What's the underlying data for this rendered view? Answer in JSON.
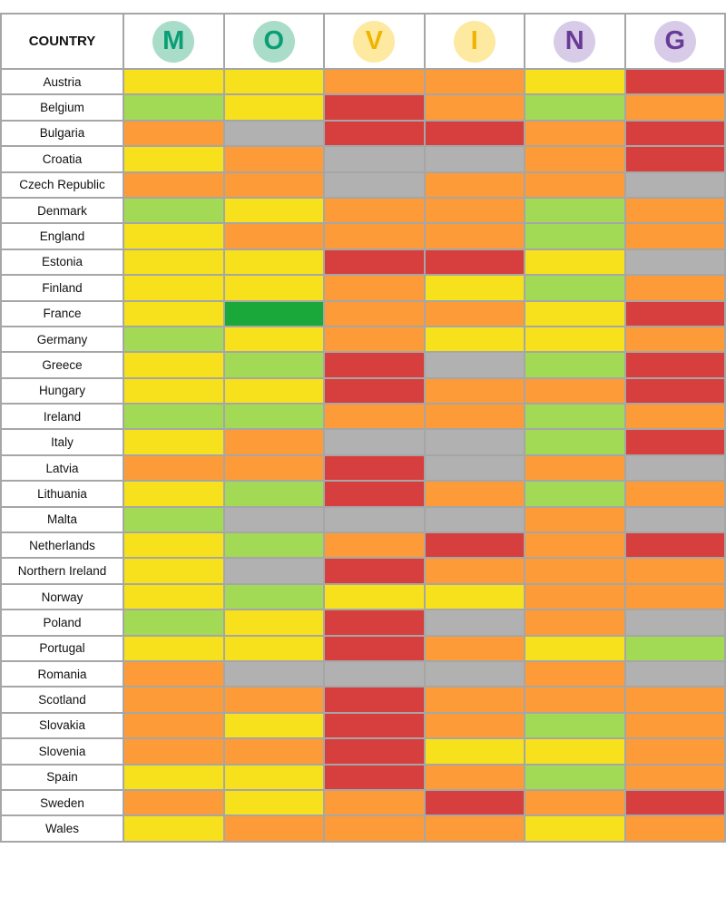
{
  "chart_data": {
    "type": "table",
    "header": {
      "country_label": "COUNTRY",
      "columns": [
        {
          "letter": "M",
          "circle_color": "#a9dcc9",
          "letter_color": "#0a9e74"
        },
        {
          "letter": "O",
          "circle_color": "#a9dcc9",
          "letter_color": "#0a9e74"
        },
        {
          "letter": "V",
          "circle_color": "#fde9a0",
          "letter_color": "#f0b400"
        },
        {
          "letter": "I",
          "circle_color": "#fde9a0",
          "letter_color": "#f0b400"
        },
        {
          "letter": "N",
          "circle_color": "#d7cbe8",
          "letter_color": "#6a3b96"
        },
        {
          "letter": "G",
          "circle_color": "#d7cbe8",
          "letter_color": "#6a3b96"
        }
      ]
    },
    "palette": {
      "Y": "#f6e11c",
      "O": "#fd9b38",
      "R": "#d73e3e",
      "L": "#a2d955",
      "D": "#1aa83a",
      "X": "#b1b1b1"
    },
    "rows": [
      {
        "country": "Austria",
        "cells": [
          "Y",
          "Y",
          "O",
          "O",
          "Y",
          "R"
        ]
      },
      {
        "country": "Belgium",
        "cells": [
          "L",
          "Y",
          "R",
          "O",
          "L",
          "O"
        ]
      },
      {
        "country": "Bulgaria",
        "cells": [
          "O",
          "X",
          "R",
          "R",
          "O",
          "R"
        ]
      },
      {
        "country": "Croatia",
        "cells": [
          "Y",
          "O",
          "X",
          "X",
          "O",
          "R"
        ]
      },
      {
        "country": "Czech Republic",
        "cells": [
          "O",
          "O",
          "X",
          "O",
          "O",
          "X"
        ]
      },
      {
        "country": "Denmark",
        "cells": [
          "L",
          "Y",
          "O",
          "O",
          "L",
          "O"
        ]
      },
      {
        "country": "England",
        "cells": [
          "Y",
          "O",
          "O",
          "O",
          "L",
          "O"
        ]
      },
      {
        "country": "Estonia",
        "cells": [
          "Y",
          "Y",
          "R",
          "R",
          "Y",
          "X"
        ]
      },
      {
        "country": "Finland",
        "cells": [
          "Y",
          "Y",
          "O",
          "Y",
          "L",
          "O"
        ]
      },
      {
        "country": "France",
        "cells": [
          "Y",
          "D",
          "O",
          "O",
          "Y",
          "R"
        ]
      },
      {
        "country": "Germany",
        "cells": [
          "L",
          "Y",
          "O",
          "Y",
          "Y",
          "O"
        ]
      },
      {
        "country": "Greece",
        "cells": [
          "Y",
          "L",
          "R",
          "X",
          "L",
          "R"
        ]
      },
      {
        "country": "Hungary",
        "cells": [
          "Y",
          "Y",
          "R",
          "O",
          "O",
          "R"
        ]
      },
      {
        "country": "Ireland",
        "cells": [
          "L",
          "L",
          "O",
          "O",
          "L",
          "O"
        ]
      },
      {
        "country": "Italy",
        "cells": [
          "Y",
          "O",
          "X",
          "X",
          "L",
          "R"
        ]
      },
      {
        "country": "Latvia",
        "cells": [
          "O",
          "O",
          "R",
          "X",
          "O",
          "X"
        ]
      },
      {
        "country": "Lithuania",
        "cells": [
          "Y",
          "L",
          "R",
          "O",
          "L",
          "O"
        ]
      },
      {
        "country": "Malta",
        "cells": [
          "L",
          "X",
          "X",
          "X",
          "O",
          "X"
        ]
      },
      {
        "country": "Netherlands",
        "cells": [
          "Y",
          "L",
          "O",
          "R",
          "O",
          "R"
        ]
      },
      {
        "country": "Northern Ireland",
        "cells": [
          "Y",
          "X",
          "R",
          "O",
          "O",
          "O"
        ]
      },
      {
        "country": "Norway",
        "cells": [
          "Y",
          "L",
          "Y",
          "Y",
          "O",
          "O"
        ]
      },
      {
        "country": "Poland",
        "cells": [
          "L",
          "Y",
          "R",
          "X",
          "O",
          "X"
        ]
      },
      {
        "country": "Portugal",
        "cells": [
          "Y",
          "Y",
          "R",
          "O",
          "Y",
          "L"
        ]
      },
      {
        "country": "Romania",
        "cells": [
          "O",
          "X",
          "X",
          "X",
          "O",
          "X"
        ]
      },
      {
        "country": "Scotland",
        "cells": [
          "O",
          "O",
          "R",
          "O",
          "O",
          "O"
        ]
      },
      {
        "country": "Slovakia",
        "cells": [
          "O",
          "Y",
          "R",
          "O",
          "L",
          "O"
        ]
      },
      {
        "country": "Slovenia",
        "cells": [
          "O",
          "O",
          "R",
          "Y",
          "Y",
          "O"
        ]
      },
      {
        "country": "Spain",
        "cells": [
          "Y",
          "Y",
          "R",
          "O",
          "L",
          "O"
        ]
      },
      {
        "country": "Sweden",
        "cells": [
          "O",
          "Y",
          "O",
          "R",
          "O",
          "R"
        ]
      },
      {
        "country": "Wales",
        "cells": [
          "Y",
          "O",
          "O",
          "O",
          "Y",
          "O"
        ]
      }
    ]
  }
}
